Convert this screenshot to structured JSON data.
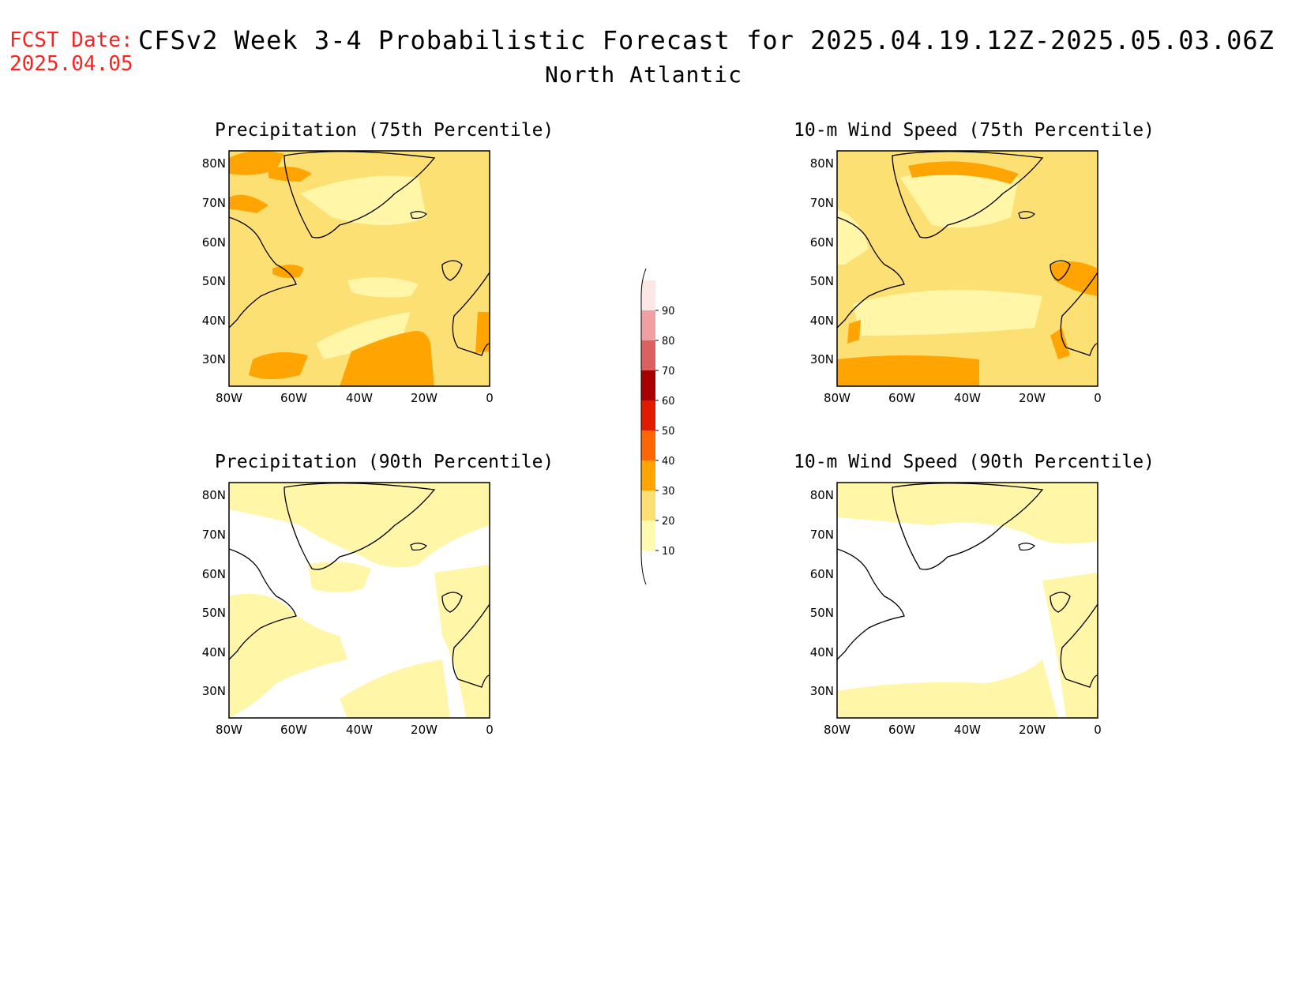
{
  "header": {
    "fcst_label": "FCST Date:",
    "fcst_date": "2025.04.05",
    "title": "CFSv2 Week 3-4 Probabilistic Forecast for 2025.04.19.12Z-2025.05.03.06Z",
    "subtitle": "North Atlantic"
  },
  "axes": {
    "lat_ticks": [
      "80N",
      "70N",
      "60N",
      "50N",
      "40N",
      "30N"
    ],
    "lon_ticks": [
      "80W",
      "60W",
      "40W",
      "20W",
      "0"
    ]
  },
  "colorbar": {
    "labels": [
      "90",
      "80",
      "70",
      "60",
      "50",
      "40",
      "30",
      "20",
      "10"
    ],
    "colors": [
      "#fde6e6",
      "#f0a0a0",
      "#dd6060",
      "#a80000",
      "#e21b00",
      "#ff6600",
      "#ffa400",
      "#fde074",
      "#fffab0"
    ]
  },
  "panels": [
    {
      "id": "precip-75",
      "title": "Precipitation (75th Percentile)",
      "base_color": "#fde074"
    },
    {
      "id": "wind-75",
      "title": "10-m Wind Speed (75th Percentile)",
      "base_color": "#fde074"
    },
    {
      "id": "precip-90",
      "title": "Precipitation (90th Percentile)",
      "base_color": "#ffffff"
    },
    {
      "id": "wind-90",
      "title": "10-m Wind Speed (90th Percentile)",
      "base_color": "#ffffff"
    }
  ]
}
